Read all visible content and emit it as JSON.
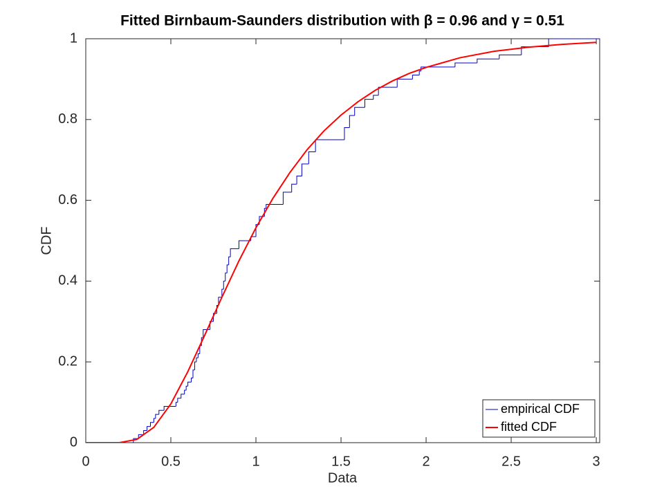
{
  "chart_data": {
    "type": "line",
    "title": "Fitted Birnbaum-Saunders distribution with β = 0.96 and γ = 0.51",
    "x_label": "Data",
    "y_label": "CDF",
    "xlim": [
      0,
      3.02
    ],
    "ylim": [
      0,
      1
    ],
    "xticks": [
      0,
      0.5,
      1,
      1.5,
      2,
      2.5,
      3
    ],
    "yticks": [
      0,
      0.2,
      0.4,
      0.6,
      0.8,
      1
    ],
    "legend": "lower right",
    "series": [
      {
        "name": "empirical CDF",
        "color": "#0000c0",
        "drawstyle": "steps-post",
        "x": [
          0,
          0.28,
          0.31,
          0.34,
          0.36,
          0.38,
          0.4,
          0.41,
          0.43,
          0.46,
          0.53,
          0.54,
          0.56,
          0.58,
          0.59,
          0.6,
          0.62,
          0.63,
          0.64,
          0.65,
          0.66,
          0.67,
          0.68,
          0.69,
          0.73,
          0.75,
          0.77,
          0.78,
          0.8,
          0.81,
          0.82,
          0.83,
          0.84,
          0.85,
          0.9,
          0.97,
          1.0,
          1.02,
          1.05,
          1.06,
          1.16,
          1.21,
          1.24,
          1.27,
          1.31,
          1.35,
          1.52,
          1.55,
          1.58,
          1.64,
          1.69,
          1.72,
          1.83,
          1.92,
          1.96,
          1.97,
          2.17,
          2.3,
          2.43,
          2.56,
          2.72
        ],
        "values": [
          0,
          0.01,
          0.02,
          0.03,
          0.04,
          0.05,
          0.06,
          0.07,
          0.08,
          0.09,
          0.1,
          0.11,
          0.12,
          0.13,
          0.14,
          0.15,
          0.16,
          0.18,
          0.2,
          0.21,
          0.22,
          0.24,
          0.26,
          0.28,
          0.3,
          0.32,
          0.34,
          0.36,
          0.38,
          0.4,
          0.42,
          0.44,
          0.46,
          0.48,
          0.5,
          0.51,
          0.54,
          0.56,
          0.58,
          0.59,
          0.62,
          0.64,
          0.66,
          0.69,
          0.72,
          0.75,
          0.78,
          0.81,
          0.83,
          0.85,
          0.86,
          0.88,
          0.9,
          0.91,
          0.92,
          0.93,
          0.94,
          0.95,
          0.96,
          0.98,
          1
        ]
      },
      {
        "name": "fitted CDF",
        "color": "#ff0000",
        "x": [
          0,
          0.1,
          0.2,
          0.3,
          0.4,
          0.5,
          0.6,
          0.7,
          0.8,
          0.9,
          1.0,
          1.1,
          1.2,
          1.3,
          1.4,
          1.5,
          1.6,
          1.7,
          1.8,
          1.9,
          2.0,
          2.2,
          2.4,
          2.6,
          2.8,
          3.0
        ],
        "values": [
          0,
          0,
          0.0003,
          0.008,
          0.038,
          0.096,
          0.176,
          0.267,
          0.36,
          0.45,
          0.532,
          0.605,
          0.669,
          0.725,
          0.772,
          0.811,
          0.844,
          0.872,
          0.895,
          0.914,
          0.929,
          0.953,
          0.969,
          0.979,
          0.986,
          0.991
        ]
      }
    ]
  }
}
